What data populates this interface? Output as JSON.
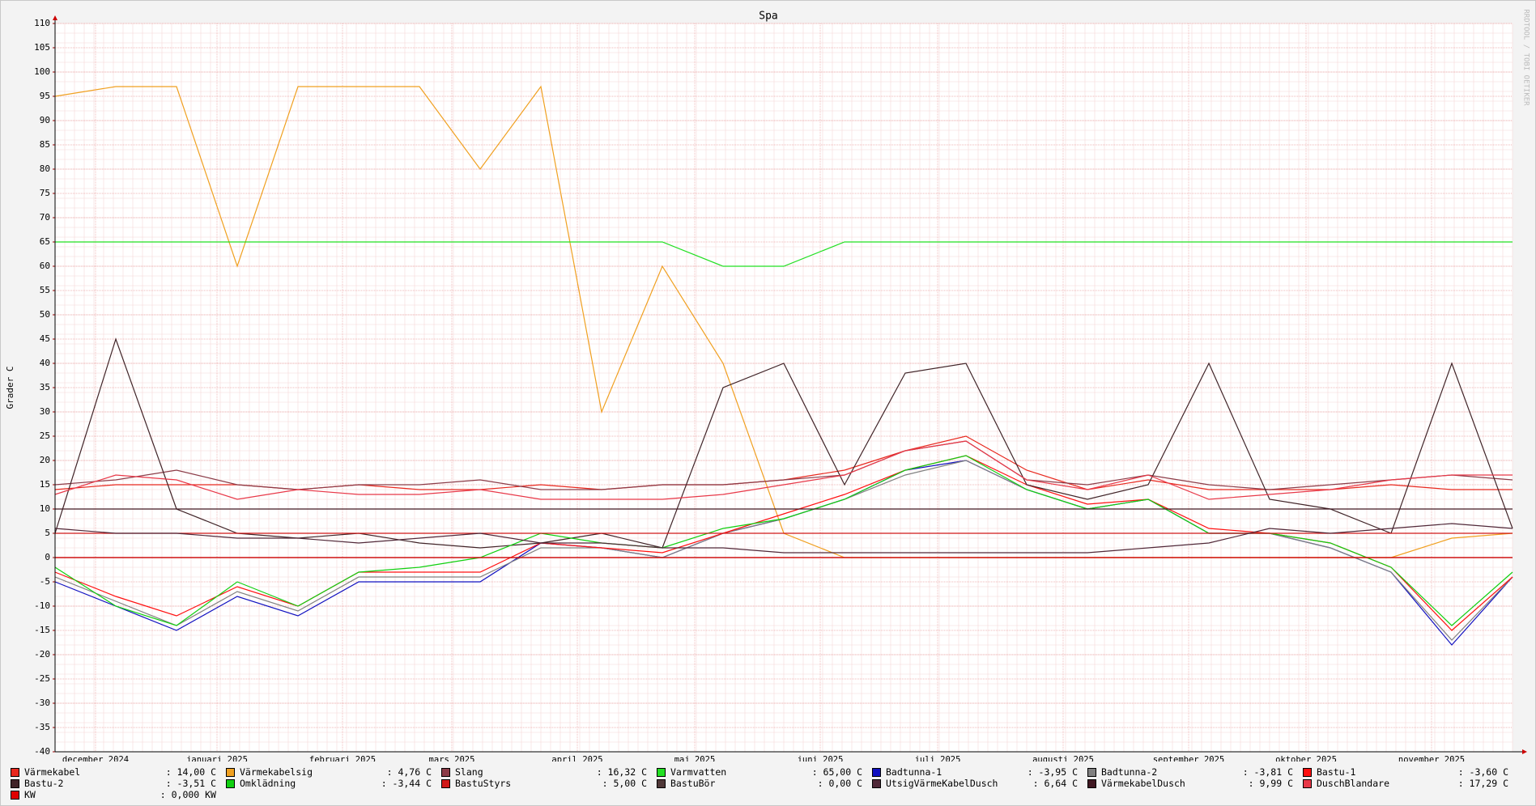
{
  "chart_data": {
    "type": "line",
    "title": "Spa",
    "y_label": "Grader C",
    "watermark": "RRDTOOL / TOBI OETIKER",
    "xlim": [
      0,
      360
    ],
    "ylim": [
      -40,
      110
    ],
    "xticks": [
      {
        "value": 10,
        "label": "december 2024"
      },
      {
        "value": 40,
        "label": "januari 2025"
      },
      {
        "value": 71,
        "label": "februari 2025"
      },
      {
        "value": 98,
        "label": "mars 2025"
      },
      {
        "value": 129,
        "label": "april 2025"
      },
      {
        "value": 158,
        "label": "maj 2025"
      },
      {
        "value": 189,
        "label": "juni 2025"
      },
      {
        "value": 218,
        "label": "juli 2025"
      },
      {
        "value": 249,
        "label": "augusti 2025"
      },
      {
        "value": 280,
        "label": "september 2025"
      },
      {
        "value": 309,
        "label": "oktober 2025"
      },
      {
        "value": 340,
        "label": "november 2025"
      }
    ],
    "yticks": [
      -40,
      -35,
      -30,
      -25,
      -20,
      -15,
      -10,
      -5,
      0,
      5,
      10,
      15,
      20,
      25,
      30,
      35,
      40,
      45,
      50,
      55,
      60,
      65,
      70,
      75,
      80,
      85,
      90,
      95,
      100,
      105,
      110
    ],
    "grid": true,
    "x": [
      0,
      15,
      30,
      45,
      60,
      75,
      90,
      105,
      120,
      135,
      150,
      165,
      180,
      195,
      210,
      225,
      240,
      255,
      270,
      285,
      300,
      315,
      330,
      345,
      360
    ],
    "series": [
      {
        "name": "Värmekabel",
        "color": "#e8281e",
        "legend_value": ": 14,00 C",
        "values": [
          14,
          15,
          15,
          15,
          14,
          15,
          14,
          14,
          15,
          14,
          15,
          15,
          16,
          18,
          22,
          25,
          18,
          14,
          16,
          14,
          14,
          14,
          15,
          14,
          14
        ]
      },
      {
        "name": "Värmekabelsig",
        "color": "#f0a020",
        "legend_value": ": 4,76 C",
        "values": [
          95,
          97,
          97,
          60,
          97,
          97,
          97,
          80,
          97,
          30,
          60,
          40,
          5,
          0,
          0,
          0,
          0,
          0,
          0,
          0,
          0,
          0,
          0,
          4,
          5
        ]
      },
      {
        "name": "Slang",
        "color": "#8c3c48",
        "legend_value": ": 16,32 C",
        "values": [
          15,
          16,
          18,
          15,
          14,
          15,
          15,
          16,
          14,
          14,
          15,
          15,
          16,
          17,
          22,
          24,
          16,
          15,
          17,
          15,
          14,
          15,
          16,
          17,
          16
        ]
      },
      {
        "name": "Varmvatten",
        "color": "#22e022",
        "legend_value": ": 65,00 C",
        "values": [
          65,
          65,
          65,
          65,
          65,
          65,
          65,
          65,
          65,
          65,
          65,
          60,
          60,
          65,
          65,
          65,
          65,
          65,
          65,
          65,
          65,
          65,
          65,
          65,
          65
        ]
      },
      {
        "name": "Badtunna-1",
        "color": "#1010c0",
        "legend_value": ": -3,95 C",
        "values": [
          -5,
          -10,
          -15,
          -8,
          -12,
          -5,
          -5,
          -5,
          3,
          2,
          0,
          5,
          8,
          12,
          18,
          20,
          14,
          10,
          12,
          5,
          5,
          2,
          -3,
          -18,
          -4
        ]
      },
      {
        "name": "Badtunna-2",
        "color": "#808080",
        "legend_value": ": -3,81 C",
        "values": [
          -4,
          -9,
          -14,
          -7,
          -11,
          -4,
          -4,
          -4,
          2,
          2,
          0,
          5,
          8,
          12,
          17,
          20,
          14,
          10,
          12,
          5,
          5,
          2,
          -3,
          -17,
          -4
        ]
      },
      {
        "name": "Bastu-1",
        "color": "#ff1010",
        "legend_value": ": -3,60 C",
        "values": [
          -3,
          -8,
          -12,
          -6,
          -10,
          -3,
          -3,
          -3,
          3,
          2,
          1,
          5,
          9,
          13,
          18,
          21,
          15,
          11,
          12,
          6,
          5,
          3,
          -2,
          -15,
          -4
        ]
      },
      {
        "name": "Bastu-2",
        "color": "#402428",
        "legend_value": ": -3,51 C",
        "values": [
          5,
          45,
          10,
          5,
          4,
          5,
          3,
          2,
          3,
          5,
          2,
          35,
          40,
          15,
          38,
          40,
          15,
          12,
          15,
          40,
          12,
          10,
          5,
          40,
          6
        ]
      },
      {
        "name": "Omklädning",
        "color": "#10d010",
        "legend_value": ": -3,44 C",
        "values": [
          -2,
          -10,
          -14,
          -5,
          -10,
          -3,
          -2,
          0,
          5,
          3,
          2,
          6,
          8,
          12,
          18,
          21,
          14,
          10,
          12,
          5,
          5,
          3,
          -2,
          -14,
          -3
        ]
      },
      {
        "name": "BastuStyrs",
        "color": "#d01818",
        "legend_value": ": 5,00 C",
        "values": [
          5,
          5,
          5,
          5,
          5,
          5,
          5,
          5,
          5,
          5,
          5,
          5,
          5,
          5,
          5,
          5,
          5,
          5,
          5,
          5,
          5,
          5,
          5,
          5,
          5
        ]
      },
      {
        "name": "BastuBör",
        "color": "#503838",
        "legend_value": ": 0,00 C",
        "values": [
          0,
          0,
          0,
          0,
          0,
          0,
          0,
          0,
          0,
          0,
          0,
          0,
          0,
          0,
          0,
          0,
          0,
          0,
          0,
          0,
          0,
          0,
          0,
          0,
          0
        ]
      },
      {
        "name": "UtsigVärmeKabelDusch",
        "color": "#502838",
        "legend_value": ": 6,64 C",
        "values": [
          6,
          5,
          5,
          4,
          4,
          3,
          4,
          5,
          3,
          3,
          2,
          2,
          1,
          1,
          1,
          1,
          1,
          1,
          2,
          3,
          6,
          5,
          6,
          7,
          6
        ]
      },
      {
        "name": "VärmekabelDusch",
        "color": "#401822",
        "legend_value": ": 9,99 C",
        "values": [
          10,
          10,
          10,
          10,
          10,
          10,
          10,
          10,
          10,
          10,
          10,
          10,
          10,
          10,
          10,
          10,
          10,
          10,
          10,
          10,
          10,
          10,
          10,
          10,
          10
        ]
      },
      {
        "name": "DuschBlandare",
        "color": "#e83848",
        "legend_value": ": 17,29 C",
        "values": [
          13,
          17,
          16,
          12,
          14,
          13,
          13,
          14,
          12,
          12,
          12,
          13,
          15,
          17,
          22,
          24,
          16,
          14,
          17,
          12,
          13,
          14,
          16,
          17,
          17
        ]
      },
      {
        "name": "KW",
        "color": "#e00000",
        "legend_value": ": 0,000 KW",
        "values": [
          0,
          0,
          0,
          0,
          0,
          0,
          0,
          0,
          0,
          0,
          0,
          0,
          0,
          0,
          0,
          0,
          0,
          0,
          0,
          0,
          0,
          0,
          0,
          0,
          0
        ]
      }
    ]
  }
}
